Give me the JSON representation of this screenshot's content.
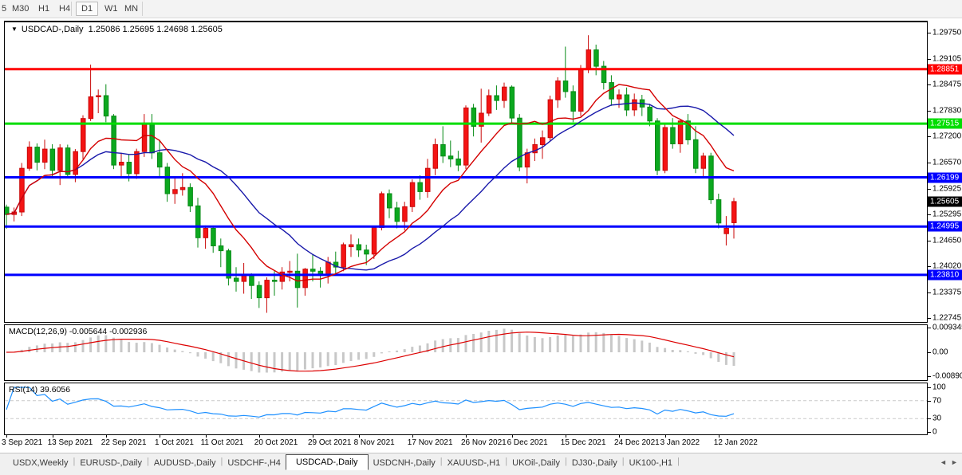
{
  "toolbar": {
    "timeframes": [
      {
        "label": "5",
        "active": false
      },
      {
        "label": "M30",
        "active": false
      },
      {
        "label": "H1",
        "active": false
      },
      {
        "label": "H4",
        "active": false
      },
      {
        "label": "D1",
        "active": true
      },
      {
        "label": "W1",
        "active": false
      },
      {
        "label": "MN",
        "active": false
      }
    ]
  },
  "chart": {
    "title": {
      "symbol": "USDCAD-,Daily",
      "ohlc": "1.25086 1.25695 1.24698 1.25605",
      "open": "1.25086",
      "high": "1.25695",
      "low": "1.24698",
      "close": "1.25605"
    }
  },
  "price_axis": {
    "labels": [
      "1.29750",
      "1.29105",
      "1.28475",
      "1.27830",
      "1.27200",
      "1.26570",
      "1.25925",
      "1.25295",
      "1.24650",
      "1.24020",
      "1.23375",
      "1.22745"
    ],
    "current": {
      "text": "1.25605",
      "bg": "#000000"
    }
  },
  "indicators": {
    "macd": {
      "label": "MACD(12,26,9) -0.005644 -0.002936"
    },
    "rsi": {
      "label": "RSI(14) 39.6056"
    }
  },
  "tabs": {
    "items": [
      {
        "label": "USDX,Weekly",
        "active": false
      },
      {
        "label": "EURUSD-,Daily",
        "active": false
      },
      {
        "label": "AUDUSD-,Daily",
        "active": false
      },
      {
        "label": "USDCHF-,H4",
        "active": false
      },
      {
        "label": "USDCAD-,Daily",
        "active": true
      },
      {
        "label": "USDCNH-,Daily",
        "active": false
      },
      {
        "label": "XAUUSD-,H1",
        "active": false
      },
      {
        "label": "UKOil-,Daily",
        "active": false
      },
      {
        "label": "DJ30-,Daily",
        "active": false
      },
      {
        "label": "UK100-,H1",
        "active": false
      }
    ],
    "scroll_left_icon": "◄",
    "scroll_right_icon": "►"
  },
  "chart_data": {
    "type": "candlestick",
    "symbol": "USDCAD",
    "timeframe": "Daily",
    "ylim": [
      1.22745,
      1.2975
    ],
    "grid": false,
    "colors": {
      "bull": "#f41414",
      "bull_dark": "#c90808",
      "bear": "#0ca81f",
      "bear_dark": "#078a16"
    },
    "dates": [
      "3 Sep 2021",
      "6 Sep 2021",
      "7 Sep 2021",
      "8 Sep 2021",
      "9 Sep 2021",
      "10 Sep 2021",
      "13 Sep 2021",
      "14 Sep 2021",
      "15 Sep 2021",
      "16 Sep 2021",
      "17 Sep 2021",
      "20 Sep 2021",
      "21 Sep 2021",
      "22 Sep 2021",
      "23 Sep 2021",
      "24 Sep 2021",
      "27 Sep 2021",
      "28 Sep 2021",
      "29 Sep 2021",
      "30 Sep 2021",
      "1 Oct 2021",
      "4 Oct 2021",
      "5 Oct 2021",
      "6 Oct 2021",
      "7 Oct 2021",
      "8 Oct 2021",
      "11 Oct 2021",
      "12 Oct 2021",
      "13 Oct 2021",
      "14 Oct 2021",
      "15 Oct 2021",
      "18 Oct 2021",
      "19 Oct 2021",
      "20 Oct 2021",
      "21 Oct 2021",
      "22 Oct 2021",
      "25 Oct 2021",
      "26 Oct 2021",
      "27 Oct 2021",
      "28 Oct 2021",
      "29 Oct 2021",
      "1 Nov 2021",
      "2 Nov 2021",
      "3 Nov 2021",
      "4 Nov 2021",
      "5 Nov 2021",
      "8 Nov 2021",
      "9 Nov 2021",
      "10 Nov 2021",
      "11 Nov 2021",
      "12 Nov 2021",
      "15 Nov 2021",
      "16 Nov 2021",
      "17 Nov 2021",
      "18 Nov 2021",
      "19 Nov 2021",
      "22 Nov 2021",
      "23 Nov 2021",
      "24 Nov 2021",
      "25 Nov 2021",
      "26 Nov 2021",
      "29 Nov 2021",
      "30 Nov 2021",
      "1 Dec 2021",
      "2 Dec 2021",
      "3 Dec 2021",
      "6 Dec 2021",
      "7 Dec 2021",
      "8 Dec 2021",
      "9 Dec 2021",
      "10 Dec 2021",
      "13 Dec 2021",
      "14 Dec 2021",
      "15 Dec 2021",
      "16 Dec 2021",
      "17 Dec 2021",
      "20 Dec 2021",
      "21 Dec 2021",
      "22 Dec 2021",
      "23 Dec 2021",
      "24 Dec 2021",
      "27 Dec 2021",
      "28 Dec 2021",
      "29 Dec 2021",
      "30 Dec 2021",
      "31 Dec 2021",
      "3 Jan 2022",
      "4 Jan 2022",
      "5 Jan 2022",
      "6 Jan 2022",
      "7 Jan 2022",
      "10 Jan 2022",
      "11 Jan 2022",
      "12 Jan 2022",
      "13 Jan 2022",
      "14 Jan 2022"
    ],
    "open": [
      1.2547,
      1.2529,
      1.2535,
      1.2642,
      1.2694,
      1.2657,
      1.2689,
      1.2637,
      1.2692,
      1.2627,
      1.2683,
      1.2764,
      1.2817,
      1.282,
      1.277,
      1.265,
      1.2657,
      1.2629,
      1.2683,
      1.275,
      1.268,
      1.2645,
      1.258,
      1.259,
      1.2595,
      1.255,
      1.2472,
      1.2495,
      1.2452,
      1.244,
      1.2373,
      1.2365,
      1.238,
      1.2355,
      1.2325,
      1.2368,
      1.2365,
      1.2388,
      1.239,
      1.235,
      1.2395,
      1.239,
      1.238,
      1.2412,
      1.24,
      1.245,
      1.2455,
      1.2442,
      1.2432,
      1.2497,
      1.258,
      1.2545,
      1.2512,
      1.2548,
      1.2607,
      1.2585,
      1.2642,
      1.27,
      1.2672,
      1.2665,
      1.265,
      1.279,
      1.2745,
      1.2777,
      1.282,
      1.2808,
      1.2841,
      1.2765,
      1.2645,
      1.268,
      1.27,
      1.2717,
      1.281,
      1.2856,
      1.283,
      1.2782,
      1.2885,
      1.2932,
      1.2892,
      1.2852,
      1.2812,
      1.2822,
      1.2785,
      1.281,
      1.2792,
      1.2758,
      1.2637,
      1.2742,
      1.2702,
      1.2758,
      1.2712,
      1.2642,
      1.2672,
      1.2565,
      1.2482,
      1.25086
    ],
    "high": [
      1.2553,
      1.2546,
      1.2655,
      1.2708,
      1.2703,
      1.2712,
      1.2701,
      1.2701,
      1.27,
      1.2689,
      1.2772,
      1.2896,
      1.2835,
      1.2848,
      1.2775,
      1.268,
      1.2675,
      1.269,
      1.2775,
      1.2775,
      1.2712,
      1.2655,
      1.2622,
      1.263,
      1.2605,
      1.257,
      1.2502,
      1.25,
      1.247,
      1.2445,
      1.24,
      1.241,
      1.2385,
      1.2365,
      1.2375,
      1.239,
      1.24,
      1.2415,
      1.2433,
      1.2398,
      1.2432,
      1.24,
      1.2425,
      1.2438,
      1.246,
      1.248,
      1.247,
      1.2455,
      1.25,
      1.2585,
      1.259,
      1.256,
      1.256,
      1.2615,
      1.2625,
      1.2665,
      1.2715,
      1.2745,
      1.271,
      1.2685,
      1.2796,
      1.28,
      1.2837,
      1.2835,
      1.2845,
      1.2852,
      1.2845,
      1.2775,
      1.269,
      1.2715,
      1.2735,
      1.282,
      1.2865,
      1.294,
      1.2845,
      1.2895,
      1.2968,
      1.2945,
      1.2905,
      1.287,
      1.2835,
      1.284,
      1.2825,
      1.2822,
      1.28,
      1.2765,
      1.275,
      1.2765,
      1.276,
      1.2775,
      1.2745,
      1.268,
      1.268,
      1.258,
      1.2525,
      1.25695
    ],
    "low": [
      1.2494,
      1.2512,
      1.2525,
      1.2636,
      1.2637,
      1.264,
      1.2622,
      1.2601,
      1.262,
      1.2608,
      1.2664,
      1.2758,
      1.2777,
      1.2755,
      1.264,
      1.262,
      1.261,
      1.2616,
      1.267,
      1.2665,
      1.2622,
      1.256,
      1.2555,
      1.2575,
      1.2535,
      1.2448,
      1.2445,
      1.2435,
      1.24,
      1.2355,
      1.234,
      1.2335,
      1.2322,
      1.23,
      1.2288,
      1.233,
      1.2345,
      1.2365,
      1.2301,
      1.233,
      1.2365,
      1.235,
      1.236,
      1.238,
      1.239,
      1.2425,
      1.2425,
      1.2405,
      1.242,
      1.249,
      1.252,
      1.2495,
      1.249,
      1.2535,
      1.2565,
      1.257,
      1.2625,
      1.2655,
      1.2645,
      1.2635,
      1.264,
      1.272,
      1.2705,
      1.277,
      1.2785,
      1.279,
      1.275,
      1.2635,
      1.2605,
      1.266,
      1.2665,
      1.271,
      1.279,
      1.2815,
      1.2755,
      1.277,
      1.2875,
      1.287,
      1.2835,
      1.2795,
      1.279,
      1.277,
      1.277,
      1.277,
      1.2745,
      1.2625,
      1.263,
      1.269,
      1.268,
      1.27,
      1.263,
      1.262,
      1.2555,
      1.2495,
      1.2453,
      1.24698
    ],
    "close": [
      1.2529,
      1.2535,
      1.2642,
      1.2694,
      1.2657,
      1.2689,
      1.2637,
      1.2692,
      1.2627,
      1.2683,
      1.2764,
      1.2817,
      1.282,
      1.277,
      1.265,
      1.2657,
      1.2629,
      1.2683,
      1.275,
      1.268,
      1.2645,
      1.258,
      1.259,
      1.2595,
      1.255,
      1.2472,
      1.2495,
      1.2452,
      1.244,
      1.2373,
      1.2365,
      1.238,
      1.2355,
      1.2325,
      1.2368,
      1.2365,
      1.2388,
      1.239,
      1.235,
      1.2395,
      1.239,
      1.238,
      1.2412,
      1.24,
      1.2455,
      1.2455,
      1.2442,
      1.2432,
      1.2497,
      1.258,
      1.2545,
      1.2512,
      1.2548,
      1.2607,
      1.2585,
      1.2642,
      1.27,
      1.2672,
      1.2665,
      1.265,
      1.279,
      1.2745,
      1.2777,
      1.282,
      1.2808,
      1.2841,
      1.2765,
      1.2645,
      1.268,
      1.27,
      1.2717,
      1.281,
      1.2856,
      1.283,
      1.2782,
      1.2885,
      1.2932,
      1.2892,
      1.2852,
      1.2812,
      1.2822,
      1.2785,
      1.281,
      1.2792,
      1.2758,
      1.2637,
      1.2742,
      1.2702,
      1.2758,
      1.2712,
      1.2642,
      1.2672,
      1.2565,
      1.2508,
      1.2495,
      1.25605
    ],
    "hlines": [
      {
        "price": "1.28851",
        "color": "#ff0000"
      },
      {
        "price": "1.27515",
        "color": "#00dd00"
      },
      {
        "price": "1.26199",
        "color": "#0000ff"
      },
      {
        "price": "1.24995",
        "color": "#0000ff"
      },
      {
        "price": "1.23810",
        "color": "#0000ff"
      }
    ],
    "ma_fast": {
      "period": 10,
      "color": "#d40000"
    },
    "ma_slow": {
      "period": 20,
      "color": "#1919aa"
    },
    "macd": {
      "params": "12,26,9",
      "main": -0.005644,
      "signal": -0.002936,
      "hist_color": "#c8c8c8",
      "signal_color": "#dd0000",
      "axis": [
        "0.009345",
        "0.00",
        "-0.008903"
      ]
    },
    "rsi": {
      "period": 14,
      "value": 39.6056,
      "color": "#1e90ff",
      "levels": [
        70,
        30
      ],
      "axis": [
        "100",
        "70",
        "30",
        "0"
      ]
    },
    "xaxis_ticks": [
      {
        "label": "3 Sep 2021",
        "index": 0
      },
      {
        "label": "13 Sep 2021",
        "index": 6
      },
      {
        "label": "22 Sep 2021",
        "index": 13
      },
      {
        "label": "1 Oct 2021",
        "index": 20
      },
      {
        "label": "11 Oct 2021",
        "index": 26
      },
      {
        "label": "20 Oct 2021",
        "index": 33
      },
      {
        "label": "29 Oct 2021",
        "index": 40
      },
      {
        "label": "8 Nov 2021",
        "index": 46
      },
      {
        "label": "17 Nov 2021",
        "index": 53
      },
      {
        "label": "26 Nov 2021",
        "index": 60
      },
      {
        "label": "6 Dec 2021",
        "index": 66
      },
      {
        "label": "15 Dec 2021",
        "index": 73
      },
      {
        "label": "24 Dec 2021",
        "index": 80
      },
      {
        "label": "3 Jan 2022",
        "index": 86
      },
      {
        "label": "12 Jan 2022",
        "index": 93
      }
    ]
  }
}
